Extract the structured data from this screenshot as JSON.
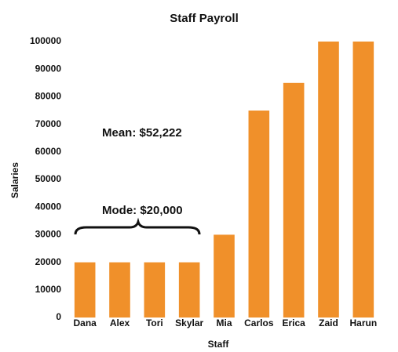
{
  "chart_data": {
    "type": "bar",
    "title": "Staff Payroll",
    "x_label": "Staff",
    "y_label": "Salaries",
    "categories": [
      "Dana",
      "Alex",
      "Tori",
      "Skylar",
      "Mia",
      "Carlos",
      "Erica",
      "Zaid",
      "Harun"
    ],
    "values": [
      20000,
      20000,
      20000,
      20000,
      30000,
      75000,
      85000,
      100000,
      100000
    ],
    "color": "#f0902a",
    "ylim": [
      0,
      100000
    ],
    "yticks": [
      0,
      10000,
      20000,
      30000,
      40000,
      50000,
      60000,
      70000,
      80000,
      90000,
      100000
    ],
    "annotations": [
      "Mean: $52,222",
      "Mode: $20,000"
    ],
    "grid": false
  }
}
